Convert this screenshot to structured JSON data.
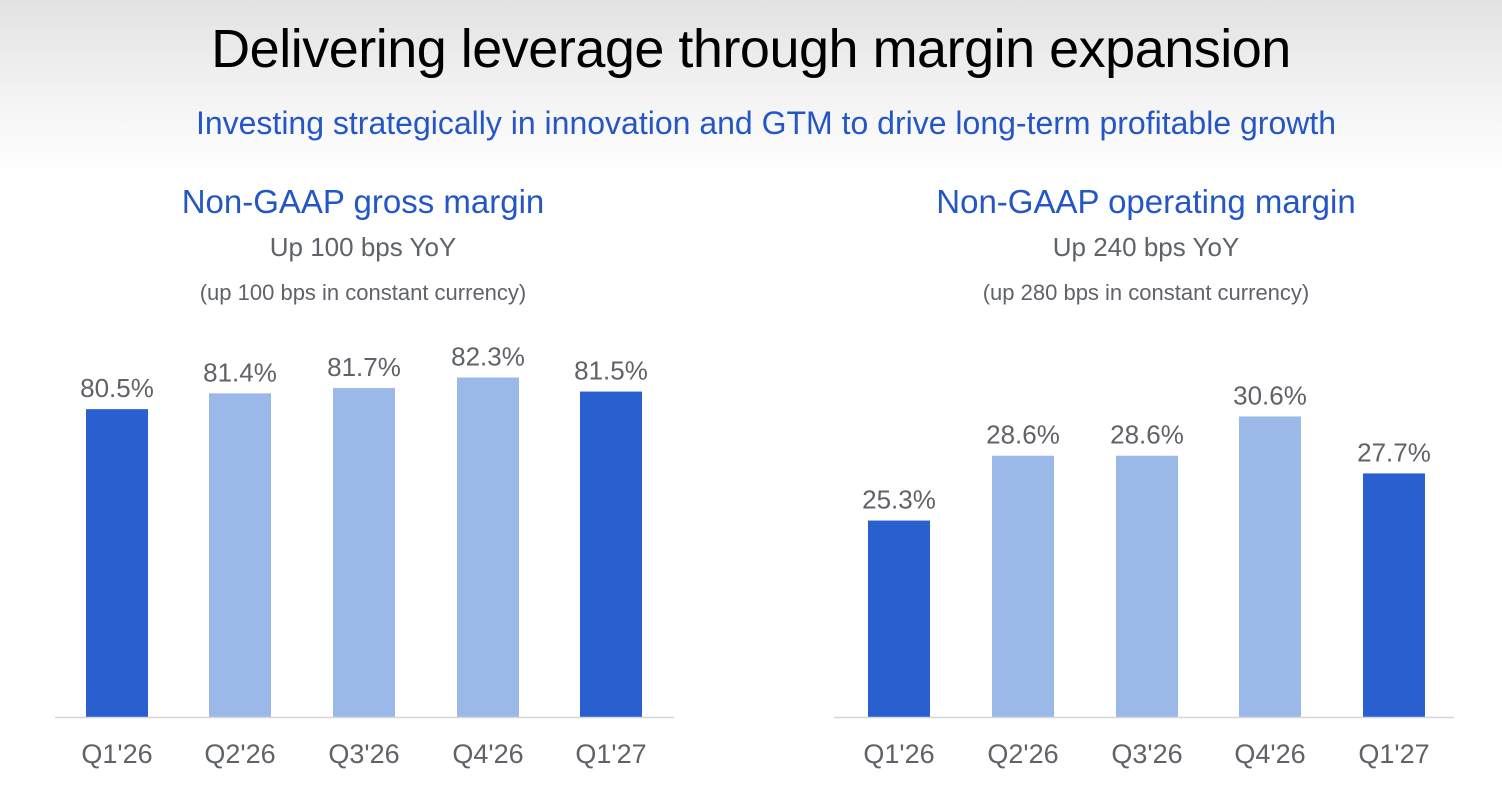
{
  "header": {
    "title": "Delivering leverage through margin expansion",
    "subtitle": "Investing strategically in innovation and GTM to drive long-term profitable growth"
  },
  "colors": {
    "title_blue": "#2457c5",
    "note_gray": "#5f6368",
    "bar_dark": "#2a5fcf",
    "bar_light": "#9bb9e8",
    "axis_line": "#d6d6d6"
  },
  "chart_data": [
    {
      "type": "bar",
      "title": "Non-GAAP gross margin",
      "subtitle": "Up 100 bps YoY",
      "note": "(up 100 bps in constant currency)",
      "categories": [
        "Q1'26",
        "Q2'26",
        "Q3'26",
        "Q4'26",
        "Q1'27"
      ],
      "values": [
        80.5,
        81.4,
        81.7,
        82.3,
        81.5
      ],
      "value_labels": [
        "80.5%",
        "81.4%",
        "81.7%",
        "82.3%",
        "81.5%"
      ],
      "highlight": [
        true,
        false,
        false,
        false,
        true
      ],
      "ylim": [
        63,
        85
      ],
      "xlabel": "",
      "ylabel": "",
      "grid": false,
      "legend": "none"
    },
    {
      "type": "bar",
      "title": "Non-GAAP operating margin",
      "subtitle": "Up 240 bps YoY",
      "note": "(up 280 bps in constant currency)",
      "categories": [
        "Q1'26",
        "Q2'26",
        "Q3'26",
        "Q4'26",
        "Q1'27"
      ],
      "values": [
        25.3,
        28.6,
        28.6,
        30.6,
        27.7
      ],
      "value_labels": [
        "25.3%",
        "28.6%",
        "28.6%",
        "30.6%",
        "27.7%"
      ],
      "highlight": [
        true,
        false,
        false,
        false,
        true
      ],
      "ylim": [
        15.3,
        35
      ],
      "xlabel": "",
      "ylabel": "",
      "grid": false,
      "legend": "none"
    }
  ]
}
